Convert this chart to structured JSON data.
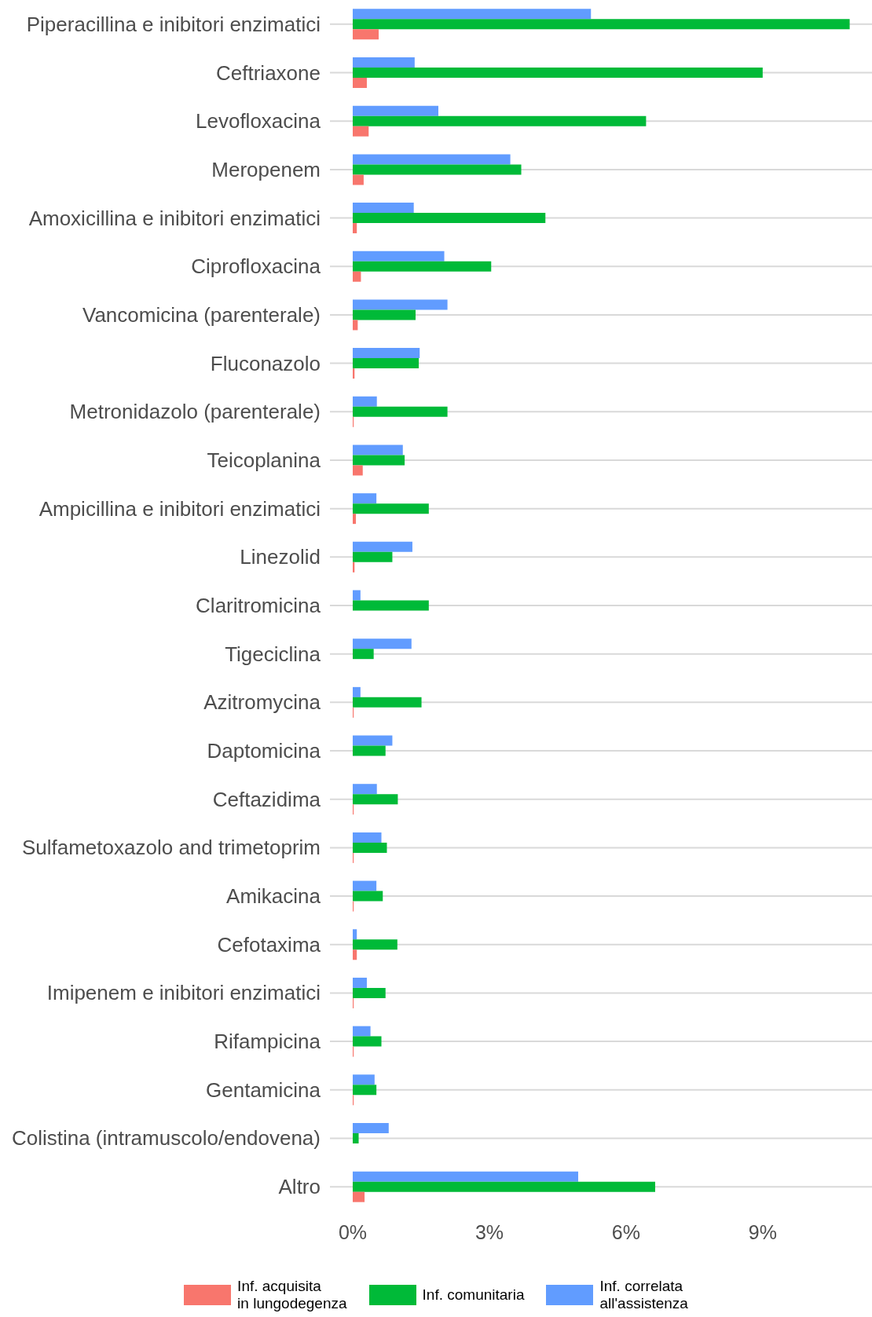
{
  "chart_data": {
    "type": "bar",
    "orientation": "horizontal",
    "categories": [
      "Piperacillina e inibitori enzimatici",
      "Ceftriaxone",
      "Levofloxacina",
      "Meropenem",
      "Amoxicillina e inibitori enzimatici",
      "Ciprofloxacina",
      "Vancomicina (parenterale)",
      "Fluconazolo",
      "Metronidazolo (parenterale)",
      "Teicoplanina",
      "Ampicillina e inibitori enzimatici",
      "Linezolid",
      "Claritromicina",
      "Tigeciclina",
      "Azitromycina",
      "Daptomicina",
      "Ceftazidima",
      "Sulfametoxazolo and trimetoprim",
      "Amikacina",
      "Cefotaxima",
      "Imipenem e inibitori enzimatici",
      "Rifampicina",
      "Gentamicina",
      "Colistina (intramuscolo/endovena)",
      "Altro"
    ],
    "series": [
      {
        "name": "Inf. acquisita\nin lungodegenza",
        "color": "#f8766d",
        "values": [
          0.57,
          0.31,
          0.35,
          0.24,
          0.09,
          0.18,
          0.11,
          0.04,
          0.02,
          0.22,
          0.07,
          0.04,
          0,
          0,
          0.02,
          0,
          0.02,
          0.02,
          0.02,
          0.09,
          0.02,
          0.02,
          0.02,
          0,
          0.26
        ]
      },
      {
        "name": "Inf. comunitaria",
        "color": "#00ba38",
        "values": [
          10.91,
          9.0,
          6.44,
          3.7,
          4.23,
          3.04,
          1.38,
          1.45,
          2.08,
          1.14,
          1.67,
          0.87,
          1.67,
          0.46,
          1.51,
          0.72,
          0.99,
          0.75,
          0.66,
          0.98,
          0.72,
          0.63,
          0.52,
          0.13,
          6.64
        ]
      },
      {
        "name": "Inf. correlata\nall'assistenza",
        "color": "#619cff",
        "values": [
          5.23,
          1.36,
          1.88,
          3.46,
          1.34,
          2.01,
          2.08,
          1.47,
          0.53,
          1.1,
          0.52,
          1.31,
          0.17,
          1.29,
          0.17,
          0.87,
          0.53,
          0.63,
          0.52,
          0.09,
          0.31,
          0.39,
          0.48,
          0.79,
          4.95
        ]
      }
    ],
    "xlim": [
      -0.5,
      11.4
    ],
    "xticks": [
      {
        "value": 0,
        "label": "0%"
      },
      {
        "value": 3,
        "label": "3%"
      },
      {
        "value": 6,
        "label": "6%"
      },
      {
        "value": 9,
        "label": "9%"
      }
    ],
    "grid": "y",
    "legend": "bottom"
  }
}
